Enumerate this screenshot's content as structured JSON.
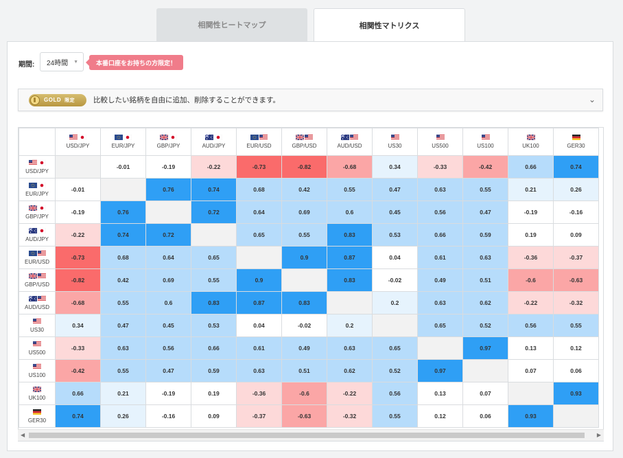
{
  "tabs": [
    {
      "label": "相関性ヒートマップ"
    },
    {
      "label": "相関性マトリクス"
    }
  ],
  "period": {
    "label": "期間:",
    "value": "24時間"
  },
  "promo": {
    "text": "本番口座をお持ちの方限定！"
  },
  "gold": {
    "badge": "GOLD",
    "limited": "限定",
    "text": "比較したい銘柄を自由に追加、削除することができます。"
  },
  "colors": {
    "positive_strong": "#2f9ff5",
    "positive_mid": "#b6dcfb",
    "positive_light": "#e6f3fd",
    "negative_strong": "#fa6b6b",
    "negative_mid": "#fba6a6",
    "negative_light": "#fdd9d9",
    "diagonal": "#f2f2f2"
  },
  "matrix": {
    "instruments": [
      {
        "label": "USD/JPY",
        "flags": [
          "us",
          "jp"
        ]
      },
      {
        "label": "EUR/JPY",
        "flags": [
          "eu",
          "jp"
        ]
      },
      {
        "label": "GBP/JPY",
        "flags": [
          "uk",
          "jp"
        ]
      },
      {
        "label": "AUD/JPY",
        "flags": [
          "au",
          "jp"
        ]
      },
      {
        "label": "EUR/USD",
        "flags": [
          "eu",
          "us"
        ]
      },
      {
        "label": "GBP/USD",
        "flags": [
          "uk",
          "us"
        ]
      },
      {
        "label": "AUD/USD",
        "flags": [
          "au",
          "us"
        ]
      },
      {
        "label": "US30",
        "flags": [
          "us"
        ]
      },
      {
        "label": "US500",
        "flags": [
          "us"
        ]
      },
      {
        "label": "US100",
        "flags": [
          "us"
        ]
      },
      {
        "label": "UK100",
        "flags": [
          "uk"
        ]
      },
      {
        "label": "GER30",
        "flags": [
          "de"
        ]
      }
    ],
    "values": [
      [
        null,
        -0.01,
        -0.19,
        -0.22,
        -0.73,
        -0.82,
        -0.68,
        0.34,
        -0.33,
        -0.42,
        0.66,
        0.74
      ],
      [
        -0.01,
        null,
        0.76,
        0.74,
        0.68,
        0.42,
        0.55,
        0.47,
        0.63,
        0.55,
        0.21,
        0.26
      ],
      [
        -0.19,
        0.76,
        null,
        0.72,
        0.64,
        0.69,
        0.6,
        0.45,
        0.56,
        0.47,
        -0.19,
        -0.16
      ],
      [
        -0.22,
        0.74,
        0.72,
        null,
        0.65,
        0.55,
        0.83,
        0.53,
        0.66,
        0.59,
        0.19,
        0.09
      ],
      [
        -0.73,
        0.68,
        0.64,
        0.65,
        null,
        0.9,
        0.87,
        0.04,
        0.61,
        0.63,
        -0.36,
        -0.37
      ],
      [
        -0.82,
        0.42,
        0.69,
        0.55,
        0.9,
        null,
        0.83,
        -0.02,
        0.49,
        0.51,
        -0.6,
        -0.63
      ],
      [
        -0.68,
        0.55,
        0.6,
        0.83,
        0.87,
        0.83,
        null,
        0.2,
        0.63,
        0.62,
        -0.22,
        -0.32
      ],
      [
        0.34,
        0.47,
        0.45,
        0.53,
        0.04,
        -0.02,
        0.2,
        null,
        0.65,
        0.52,
        0.56,
        0.55
      ],
      [
        -0.33,
        0.63,
        0.56,
        0.66,
        0.61,
        0.49,
        0.63,
        0.65,
        null,
        0.97,
        0.13,
        0.12
      ],
      [
        -0.42,
        0.55,
        0.47,
        0.59,
        0.63,
        0.51,
        0.62,
        0.52,
        0.97,
        null,
        0.07,
        0.06
      ],
      [
        0.66,
        0.21,
        -0.19,
        0.19,
        -0.36,
        -0.6,
        -0.22,
        0.56,
        0.13,
        0.07,
        null,
        0.93
      ],
      [
        0.74,
        0.26,
        -0.16,
        0.09,
        -0.37,
        -0.63,
        -0.32,
        0.55,
        0.12,
        0.06,
        0.93,
        null
      ]
    ]
  }
}
